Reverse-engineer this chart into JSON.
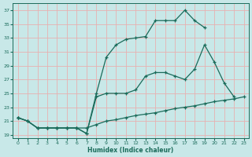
{
  "line1_x": [
    0,
    1,
    2,
    3,
    4,
    5,
    6,
    7,
    8,
    9,
    10,
    11,
    12,
    13,
    14,
    15,
    16,
    17,
    18,
    19
  ],
  "line1_y": [
    21.5,
    21.0,
    20.0,
    20.0,
    20.0,
    20.0,
    20.0,
    19.2,
    25.0,
    30.2,
    32.0,
    32.8,
    33.0,
    33.2,
    35.5,
    35.5,
    35.5,
    37.0,
    35.5,
    34.5
  ],
  "line2_x": [
    0,
    1,
    2,
    3,
    4,
    5,
    6,
    7,
    8,
    9,
    10,
    11,
    12,
    13,
    14,
    15,
    16,
    17,
    18,
    19,
    20,
    21,
    22
  ],
  "line2_y": [
    21.5,
    21.0,
    20.0,
    20.0,
    20.0,
    20.0,
    20.0,
    19.2,
    24.5,
    25.0,
    25.0,
    25.0,
    25.5,
    27.5,
    28.0,
    28.0,
    27.5,
    27.0,
    28.5,
    32.0,
    29.5,
    26.5,
    24.5
  ],
  "line3_x": [
    0,
    1,
    2,
    3,
    4,
    5,
    6,
    7,
    8,
    9,
    10,
    11,
    12,
    13,
    14,
    15,
    16,
    17,
    18,
    19,
    20,
    21,
    22,
    23
  ],
  "line3_y": [
    21.5,
    21.0,
    20.0,
    20.0,
    20.0,
    20.0,
    20.0,
    20.0,
    20.5,
    21.0,
    21.2,
    21.5,
    21.8,
    22.0,
    22.2,
    22.5,
    22.8,
    23.0,
    23.2,
    23.5,
    23.8,
    24.0,
    24.2,
    24.5
  ],
  "line_color": "#1a6b5a",
  "bg_color": "#c8e8e8",
  "grid_color": "#e8b0b0",
  "xlabel": "Humidex (Indice chaleur)",
  "xlim": [
    -0.5,
    23.5
  ],
  "ylim": [
    18.5,
    38.0
  ],
  "yticks": [
    19,
    21,
    23,
    25,
    27,
    29,
    31,
    33,
    35,
    37
  ],
  "xticks": [
    0,
    1,
    2,
    3,
    4,
    5,
    6,
    7,
    8,
    9,
    10,
    11,
    12,
    13,
    14,
    15,
    16,
    17,
    18,
    19,
    20,
    21,
    22,
    23
  ]
}
